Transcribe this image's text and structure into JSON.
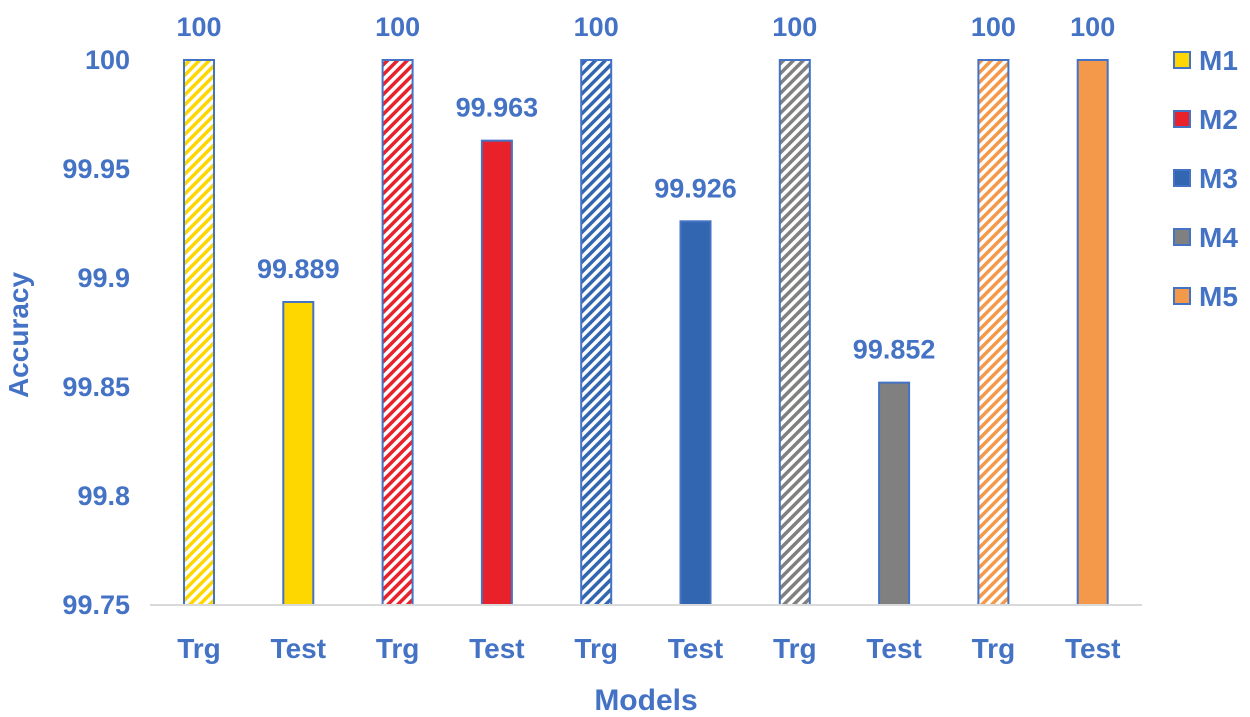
{
  "chart_data": {
    "type": "bar",
    "title": "",
    "xlabel": "Models",
    "ylabel": "Accuracy",
    "ylim": [
      99.75,
      100
    ],
    "yticks": [
      "99.75",
      "99.8",
      "99.85",
      "99.9",
      "99.95",
      "100"
    ],
    "categories": [
      "Trg",
      "Test",
      "Trg",
      "Test",
      "Trg",
      "Test",
      "Trg",
      "Test",
      "Trg",
      "Test"
    ],
    "bars": [
      {
        "category": "Trg",
        "series": "M1",
        "value": 100,
        "label": "100",
        "hatched": true
      },
      {
        "category": "Test",
        "series": "M1",
        "value": 99.889,
        "label": "99.889",
        "hatched": false
      },
      {
        "category": "Trg",
        "series": "M2",
        "value": 100,
        "label": "100",
        "hatched": true
      },
      {
        "category": "Test",
        "series": "M2",
        "value": 99.963,
        "label": "99.963",
        "hatched": false
      },
      {
        "category": "Trg",
        "series": "M3",
        "value": 100,
        "label": "100",
        "hatched": true
      },
      {
        "category": "Test",
        "series": "M3",
        "value": 99.926,
        "label": "99.926",
        "hatched": false
      },
      {
        "category": "Trg",
        "series": "M4",
        "value": 100,
        "label": "100",
        "hatched": true
      },
      {
        "category": "Test",
        "series": "M4",
        "value": 99.852,
        "label": "99.852",
        "hatched": false
      },
      {
        "category": "Trg",
        "series": "M5",
        "value": 100,
        "label": "100",
        "hatched": true
      },
      {
        "category": "Test",
        "series": "M5",
        "value": 100,
        "label": "100",
        "hatched": false
      }
    ],
    "legend": {
      "position": "right",
      "items": [
        {
          "name": "M1",
          "color": "#FFD700"
        },
        {
          "name": "M2",
          "color": "#E8212B"
        },
        {
          "name": "M3",
          "color": "#3366B0"
        },
        {
          "name": "M4",
          "color": "#808080"
        },
        {
          "name": "M5",
          "color": "#F4994A"
        }
      ]
    },
    "grid": false,
    "colors": {
      "text": "#4472C4",
      "bar_outline": "#4472C4",
      "axis": "#D9D9D9"
    }
  }
}
